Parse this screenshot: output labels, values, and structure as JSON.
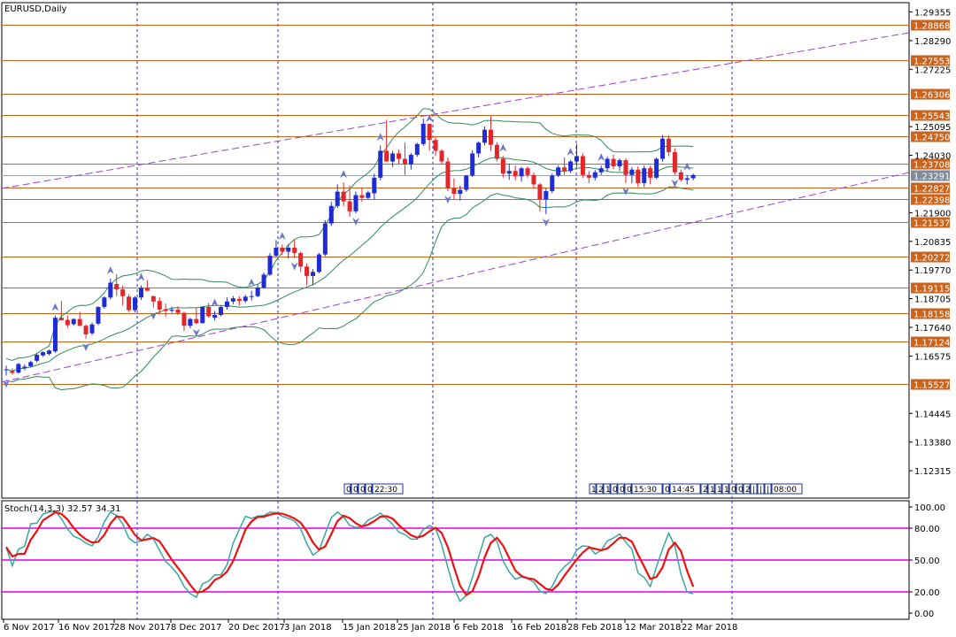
{
  "window": {
    "title": "EURUSD,Daily"
  },
  "colors": {
    "bull": "#1f2bd6",
    "bear": "#e3262a",
    "band": "#2e8b57",
    "hline": "#c8641e",
    "channel": "#9a3fd0",
    "vgrid": "#1f2bd6",
    "stoch_main": "#3aa6a0",
    "stoch_signal": "#ee1111",
    "stoch_level": "#e000e0",
    "fractal": "#6a76c8"
  },
  "chart_data": [
    {
      "type": "candlestick",
      "symbol": "EURUSD",
      "timeframe": "Daily",
      "title": "EURUSD,Daily",
      "y_range": [
        1.113,
        1.297
      ],
      "price_ticks": [
        "1.29355",
        "1.28290",
        "1.27225",
        "1.25095",
        "1.24030",
        "1.21900",
        "1.20835",
        "1.19770",
        "1.18705",
        "1.17640",
        "1.16575",
        "1.14445",
        "1.13380",
        "1.12315"
      ],
      "x_tick_labels": [
        "6 Nov 2017",
        "16 Nov 2017",
        "28 Nov 2017",
        "8 Dec 2017",
        "20 Dec 2017",
        "3 Jan 2018",
        "15 Jan 2018",
        "25 Jan 2018",
        "6 Feb 2018",
        "16 Feb 2018",
        "28 Feb 2018",
        "12 Mar 2018",
        "22 Mar 2018"
      ],
      "current_price": "1.23291",
      "horizontal_levels": [
        "1.28868",
        "1.27553",
        "1.26306",
        "1.25543",
        "1.24750",
        "1.23708",
        "1.22827",
        "1.22398",
        "1.21537",
        "1.20272",
        "1.19115",
        "1.18158",
        "1.17124",
        "1.15527"
      ],
      "grid": false,
      "ohlc": [
        [
          1.1605,
          1.1622,
          1.1585,
          1.1608
        ],
        [
          1.1602,
          1.1612,
          1.1588,
          1.1595
        ],
        [
          1.1596,
          1.1632,
          1.1592,
          1.1628
        ],
        [
          1.1612,
          1.1626,
          1.1604,
          1.1618
        ],
        [
          1.162,
          1.164,
          1.1615,
          1.1635
        ],
        [
          1.164,
          1.1668,
          1.1634,
          1.1662
        ],
        [
          1.166,
          1.1675,
          1.1655,
          1.1672
        ],
        [
          1.1665,
          1.1682,
          1.166,
          1.1678
        ],
        [
          1.1675,
          1.1808,
          1.167,
          1.18
        ],
        [
          1.18,
          1.1862,
          1.179,
          1.179
        ],
        [
          1.1792,
          1.1808,
          1.1762,
          1.1772
        ],
        [
          1.1776,
          1.1798,
          1.177,
          1.1795
        ],
        [
          1.1795,
          1.1822,
          1.1768,
          1.177
        ],
        [
          1.177,
          1.1775,
          1.1722,
          1.1738
        ],
        [
          1.1742,
          1.1782,
          1.1735,
          1.1775
        ],
        [
          1.1778,
          1.1842,
          1.1772,
          1.184
        ],
        [
          1.184,
          1.188,
          1.1834,
          1.1875
        ],
        [
          1.1875,
          1.1945,
          1.1868,
          1.193
        ],
        [
          1.1925,
          1.1962,
          1.188,
          1.1905
        ],
        [
          1.1905,
          1.192,
          1.1845,
          1.188
        ],
        [
          1.1878,
          1.1888,
          1.182,
          1.1828
        ],
        [
          1.1828,
          1.188,
          1.182,
          1.1875
        ],
        [
          1.1875,
          1.192,
          1.1866,
          1.191
        ],
        [
          1.191,
          1.194,
          1.19,
          1.19
        ],
        [
          1.188,
          1.1882,
          1.1838,
          1.186
        ],
        [
          1.1862,
          1.1875,
          1.1815,
          1.183
        ],
        [
          1.1832,
          1.1852,
          1.1805,
          1.1825
        ],
        [
          1.1826,
          1.184,
          1.1818,
          1.183
        ],
        [
          1.183,
          1.1842,
          1.181,
          1.1818
        ],
        [
          1.1818,
          1.1822,
          1.175,
          1.177
        ],
        [
          1.177,
          1.18,
          1.176,
          1.1795
        ],
        [
          1.1795,
          1.1835,
          1.1775,
          1.178
        ],
        [
          1.178,
          1.1842,
          1.1778,
          1.184
        ],
        [
          1.184,
          1.1855,
          1.18,
          1.1805
        ],
        [
          1.18,
          1.1825,
          1.179,
          1.181
        ],
        [
          1.181,
          1.1845,
          1.1805,
          1.184
        ],
        [
          1.184,
          1.1875,
          1.183,
          1.186
        ],
        [
          1.186,
          1.188,
          1.185,
          1.1872
        ],
        [
          1.187,
          1.188,
          1.1845,
          1.1862
        ],
        [
          1.1862,
          1.1885,
          1.1855,
          1.1878
        ],
        [
          1.1878,
          1.19,
          1.1865,
          1.188
        ],
        [
          1.188,
          1.1925,
          1.1876,
          1.1912
        ],
        [
          1.1912,
          1.1968,
          1.1908,
          1.196
        ],
        [
          1.196,
          1.204,
          1.1955,
          1.203
        ],
        [
          1.203,
          1.2088,
          1.2025,
          1.206
        ],
        [
          1.206,
          1.2072,
          1.2032,
          1.2045
        ],
        [
          1.2045,
          1.2072,
          1.202,
          1.206
        ],
        [
          1.206,
          1.209,
          1.2022,
          1.204
        ],
        [
          1.204,
          1.2045,
          1.197,
          1.199
        ],
        [
          1.199,
          1.2002,
          1.192,
          1.1955
        ],
        [
          1.1955,
          1.198,
          1.192,
          1.197
        ],
        [
          1.197,
          1.204,
          1.1965,
          1.2035
        ],
        [
          1.2035,
          1.2162,
          1.2028,
          1.215
        ],
        [
          1.215,
          1.223,
          1.214,
          1.2215
        ],
        [
          1.2215,
          1.2295,
          1.2208,
          1.2268
        ],
        [
          1.2268,
          1.2302,
          1.2215,
          1.2232
        ],
        [
          1.2232,
          1.229,
          1.2175,
          1.2195
        ],
        [
          1.2195,
          1.2268,
          1.2188,
          1.2255
        ],
        [
          1.2255,
          1.2282,
          1.223,
          1.2245
        ],
        [
          1.2245,
          1.2272,
          1.2238,
          1.2265
        ],
        [
          1.2262,
          1.2335,
          1.224,
          1.232
        ],
        [
          1.232,
          1.244,
          1.231,
          1.242
        ],
        [
          1.242,
          1.2535,
          1.239,
          1.238
        ],
        [
          1.238,
          1.242,
          1.236,
          1.241
        ],
        [
          1.241,
          1.2425,
          1.237,
          1.239
        ],
        [
          1.239,
          1.245,
          1.233,
          1.237
        ],
        [
          1.237,
          1.2412,
          1.235,
          1.2405
        ],
        [
          1.2405,
          1.245,
          1.2398,
          1.2445
        ],
        [
          1.2445,
          1.254,
          1.2438,
          1.252
        ],
        [
          1.252,
          1.251,
          1.242,
          1.246
        ],
        [
          1.246,
          1.247,
          1.24,
          1.242
        ],
        [
          1.242,
          1.2425,
          1.237,
          1.238
        ],
        [
          1.238,
          1.2395,
          1.227,
          1.228
        ],
        [
          1.228,
          1.2318,
          1.224,
          1.226
        ],
        [
          1.226,
          1.229,
          1.2235,
          1.2275
        ],
        [
          1.2275,
          1.233,
          1.2268,
          1.2328
        ],
        [
          1.2328,
          1.2422,
          1.2322,
          1.241
        ],
        [
          1.241,
          1.2455,
          1.2395,
          1.245
        ],
        [
          1.245,
          1.251,
          1.244,
          1.2498
        ],
        [
          1.2498,
          1.2548,
          1.242,
          1.2442
        ],
        [
          1.2442,
          1.2452,
          1.238,
          1.239
        ],
        [
          1.239,
          1.24,
          1.232,
          1.2335
        ],
        [
          1.2335,
          1.2372,
          1.2312,
          1.2345
        ],
        [
          1.2345,
          1.2365,
          1.231,
          1.2325
        ],
        [
          1.2325,
          1.236,
          1.2305,
          1.2355
        ],
        [
          1.2355,
          1.2362,
          1.232,
          1.233
        ],
        [
          1.233,
          1.234,
          1.228,
          1.2295
        ],
        [
          1.2295,
          1.23,
          1.2195,
          1.224
        ],
        [
          1.224,
          1.228,
          1.2185,
          1.227
        ],
        [
          1.227,
          1.2335,
          1.2262,
          1.2328
        ],
        [
          1.2328,
          1.2365,
          1.2322,
          1.2358
        ],
        [
          1.2358,
          1.2395,
          1.233,
          1.2345
        ],
        [
          1.2345,
          1.2385,
          1.2338,
          1.238
        ],
        [
          1.238,
          1.2445,
          1.236,
          1.24
        ],
        [
          1.24,
          1.241,
          1.232,
          1.233
        ],
        [
          1.233,
          1.2345,
          1.23,
          1.232
        ],
        [
          1.232,
          1.2348,
          1.231,
          1.234
        ],
        [
          1.234,
          1.2365,
          1.233,
          1.2355
        ],
        [
          1.2355,
          1.2398,
          1.2342,
          1.239
        ],
        [
          1.239,
          1.2405,
          1.2352,
          1.2362
        ],
        [
          1.2362,
          1.2392,
          1.2345,
          1.2385
        ],
        [
          1.2385,
          1.2392,
          1.23,
          1.233
        ],
        [
          1.233,
          1.236,
          1.23,
          1.235
        ],
        [
          1.235,
          1.2362,
          1.2285,
          1.23
        ],
        [
          1.23,
          1.2365,
          1.2285,
          1.2355
        ],
        [
          1.2355,
          1.2365,
          1.2295,
          1.232
        ],
        [
          1.232,
          1.2395,
          1.2315,
          1.239
        ],
        [
          1.239,
          1.2478,
          1.238,
          1.2465
        ],
        [
          1.2465,
          1.2478,
          1.24,
          1.2415
        ],
        [
          1.2415,
          1.243,
          1.233,
          1.234
        ],
        [
          1.234,
          1.235,
          1.2305,
          1.2312
        ],
        [
          1.2312,
          1.233,
          1.2295,
          1.2318
        ],
        [
          1.2318,
          1.2335,
          1.231,
          1.233
        ]
      ],
      "fractals_up_index": [
        8,
        17,
        22,
        34,
        40,
        45,
        55,
        61,
        69,
        81,
        92,
        97,
        111
      ],
      "fractals_down_index": [
        0,
        13,
        24,
        31,
        47,
        57,
        72,
        88,
        101,
        109
      ]
    },
    {
      "type": "line",
      "title": "Stoch(14,3,3) 32.57 34.31",
      "indicator": "Stoch",
      "parameters": "14,3,3",
      "main_value": "32.57",
      "signal_value": "34.31",
      "y_range": [
        0,
        100
      ],
      "y_tick_labels": [
        "100.00",
        "80.00",
        "50.00",
        "20.00",
        "0.00"
      ],
      "levels": [
        80,
        50,
        20
      ]
    }
  ],
  "time_markers": {
    "left": [
      "0",
      "0",
      "0",
      "0",
      "22:30"
    ],
    "right": [
      "1",
      "2",
      "1",
      "0",
      "0",
      "0",
      "15:30",
      "0",
      "14:45",
      "2",
      "1",
      "1",
      "1",
      "0",
      "0",
      "2",
      "|",
      "|",
      "|",
      "08:00"
    ]
  }
}
